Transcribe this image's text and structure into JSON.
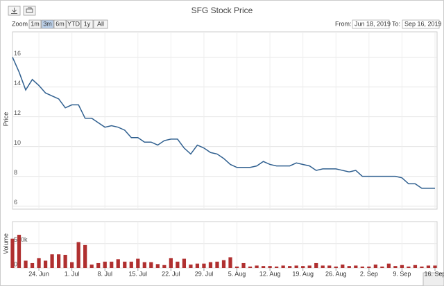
{
  "ui": {
    "zoom_label": "Zoom",
    "buttons": [
      "1m",
      "3m",
      "6m",
      "YTD",
      "1y",
      "All"
    ],
    "selected": 1,
    "from_label": "From:",
    "from": "Jun 18, 2019",
    "to_label": "To:",
    "to": "Sep 16, 2019"
  },
  "chart_data": [
    {
      "type": "line",
      "title": "SFG Stock Price",
      "ylabel": "Price",
      "color": "#2f5f8f",
      "grid": true,
      "ylim": [
        5.8,
        17.7
      ],
      "yticks": [
        6,
        8,
        10,
        12,
        14,
        16
      ],
      "values": [
        16.0,
        15.0,
        13.8,
        14.5,
        14.1,
        13.6,
        13.4,
        13.2,
        12.6,
        12.8,
        12.8,
        11.9,
        11.9,
        11.6,
        11.3,
        11.4,
        11.3,
        11.1,
        10.6,
        10.6,
        10.3,
        10.3,
        10.1,
        10.4,
        10.5,
        10.5,
        9.9,
        9.5,
        10.1,
        9.9,
        9.6,
        9.5,
        9.2,
        8.8,
        8.6,
        8.6,
        8.6,
        8.7,
        9.0,
        8.8,
        8.7,
        8.7,
        8.7,
        8.9,
        8.8,
        8.7,
        8.4,
        8.5,
        8.5,
        8.5,
        8.4,
        8.3,
        8.4,
        8.0,
        8.0,
        8.0,
        8.0,
        8.0,
        8.0,
        7.9,
        7.5,
        7.5,
        7.2,
        7.2,
        7.2
      ]
    },
    {
      "type": "bar",
      "ylabel": "Volume",
      "color": "#b03030",
      "grid": true,
      "ylim": [
        0,
        950000
      ],
      "yticks": [
        {
          "value": 0,
          "label": "0k"
        },
        {
          "value": 500000,
          "label": "500k"
        }
      ],
      "categories": [
        null,
        null,
        null,
        null,
        "24. Jun",
        null,
        null,
        null,
        null,
        "1. Jul",
        null,
        null,
        null,
        null,
        "8. Jul",
        null,
        null,
        null,
        null,
        "15. Jul",
        null,
        null,
        null,
        null,
        "22. Jul",
        null,
        null,
        null,
        null,
        "29. Jul",
        null,
        null,
        null,
        null,
        "5. Aug",
        null,
        null,
        null,
        null,
        "12. Aug",
        null,
        null,
        null,
        null,
        "19. Aug",
        null,
        null,
        null,
        null,
        "26. Aug",
        null,
        null,
        null,
        null,
        "2. Sep",
        null,
        null,
        null,
        null,
        "9. Sep",
        null,
        null,
        null,
        null,
        "16. Sep"
      ],
      "values": [
        600000,
        680000,
        150000,
        100000,
        200000,
        150000,
        280000,
        280000,
        270000,
        120000,
        530000,
        470000,
        70000,
        100000,
        130000,
        130000,
        180000,
        130000,
        130000,
        190000,
        120000,
        120000,
        80000,
        60000,
        200000,
        130000,
        190000,
        70000,
        90000,
        90000,
        120000,
        130000,
        160000,
        220000,
        30000,
        100000,
        30000,
        50000,
        40000,
        40000,
        30000,
        50000,
        40000,
        50000,
        40000,
        50000,
        100000,
        50000,
        50000,
        30000,
        70000,
        40000,
        50000,
        30000,
        30000,
        70000,
        30000,
        90000,
        40000,
        60000,
        30000,
        60000,
        30000,
        50000,
        50000
      ]
    }
  ]
}
